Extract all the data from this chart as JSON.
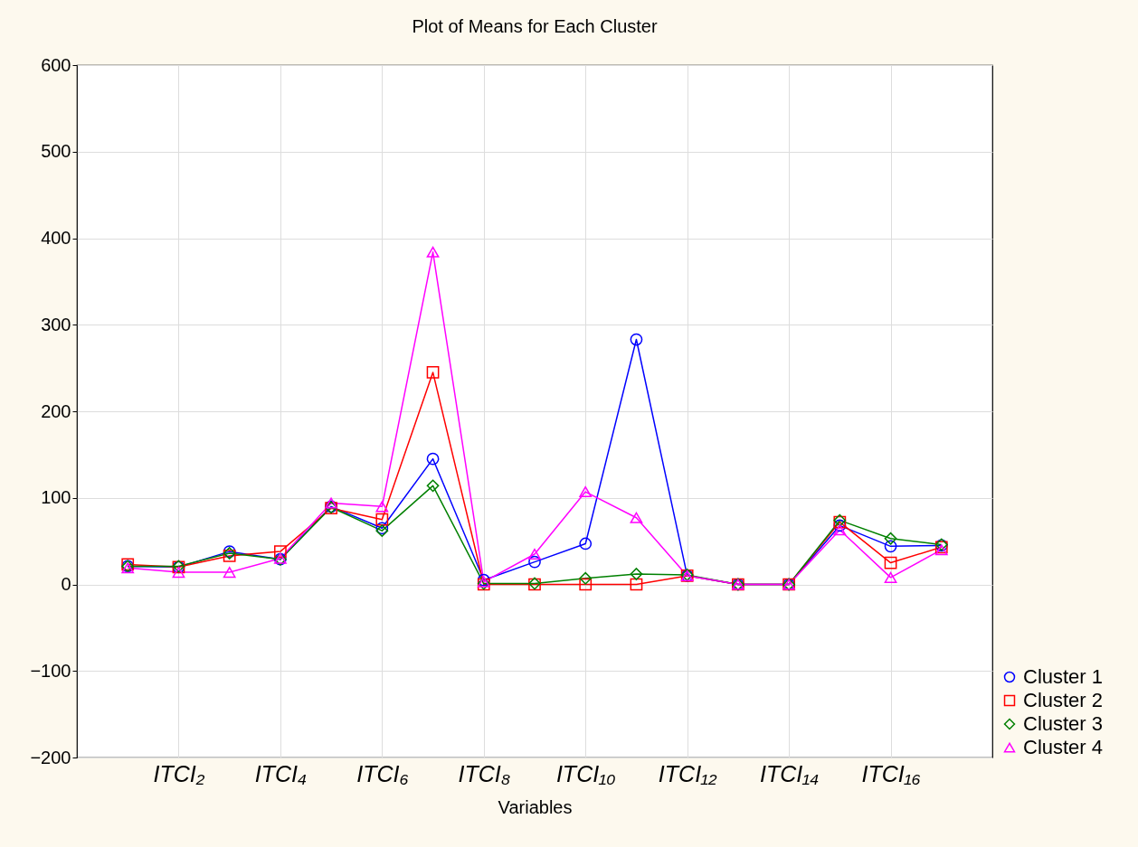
{
  "chart_data": {
    "type": "line",
    "title": "Plot of Means for Each Cluster",
    "xlabel": "Variables",
    "categories": [
      null,
      "ITCI₂",
      null,
      "ITCI₄",
      null,
      "ITCI₆",
      null,
      "ITCI₈",
      null,
      "ITCI₁₀",
      null,
      "ITCI₁₂",
      null,
      "ITCI₁₄",
      null,
      "ITCI₁₆",
      null
    ],
    "series": [
      {
        "name": "Cluster 1",
        "color": "#0000ff",
        "marker": "circle",
        "values": [
          21,
          20,
          38,
          29,
          90,
          65,
          145,
          5,
          26,
          47,
          283,
          10,
          0,
          0,
          68,
          44,
          45
        ]
      },
      {
        "name": "Cluster 2",
        "color": "#ff0000",
        "marker": "square",
        "values": [
          23,
          20,
          33,
          38,
          88,
          75,
          245,
          0,
          0,
          0,
          0,
          10,
          0,
          0,
          72,
          25,
          43
        ]
      },
      {
        "name": "Cluster 3",
        "color": "#008000",
        "marker": "diamond",
        "values": [
          21,
          21,
          36,
          29,
          89,
          62,
          114,
          1,
          1,
          7,
          12,
          11,
          0,
          0,
          74,
          53,
          46
        ]
      },
      {
        "name": "Cluster 4",
        "color": "#ff00ff",
        "marker": "triangle",
        "values": [
          19,
          14,
          14,
          30,
          94,
          90,
          384,
          3,
          35,
          107,
          77,
          10,
          0,
          0,
          63,
          8,
          40
        ]
      }
    ],
    "ylim": [
      -200,
      600
    ],
    "yticks": [
      -200,
      -100,
      0,
      100,
      200,
      300,
      400,
      500,
      600
    ],
    "grid": true,
    "legend": "bottom right",
    "line_style": "solid"
  }
}
